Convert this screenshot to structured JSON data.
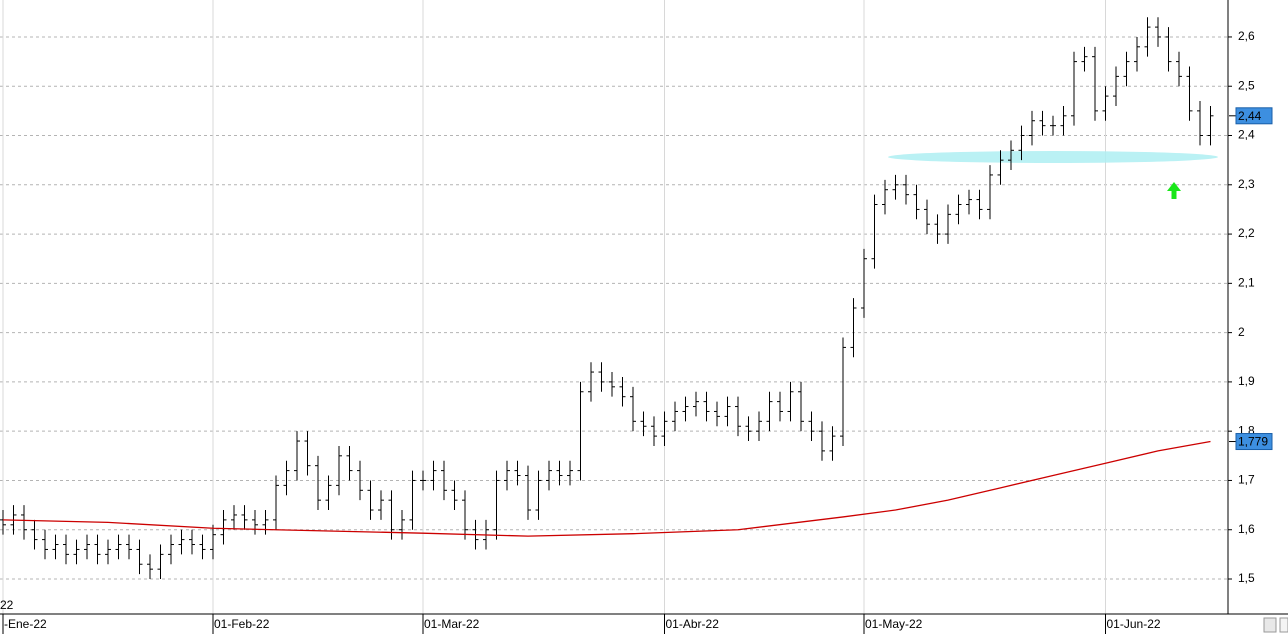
{
  "chart_data": {
    "type": "ohlc",
    "categories": [
      "-Ene-22",
      null,
      null,
      null,
      null,
      null,
      null,
      null,
      null,
      null,
      null,
      null,
      null,
      null,
      null,
      null,
      null,
      null,
      null,
      null,
      "01-Feb-22",
      null,
      null,
      null,
      null,
      null,
      null,
      null,
      null,
      null,
      null,
      null,
      null,
      null,
      null,
      null,
      null,
      null,
      null,
      null,
      "01-Mar-22",
      null,
      null,
      null,
      null,
      null,
      null,
      null,
      null,
      null,
      null,
      null,
      null,
      null,
      null,
      null,
      null,
      null,
      null,
      null,
      null,
      null,
      null,
      "01-Abr-22",
      null,
      null,
      null,
      null,
      null,
      null,
      null,
      null,
      null,
      null,
      null,
      null,
      null,
      null,
      null,
      null,
      null,
      null,
      "01-May-22",
      null,
      null,
      null,
      null,
      null,
      null,
      null,
      null,
      null,
      null,
      null,
      null,
      null,
      null,
      null,
      null,
      null,
      null,
      null,
      null,
      null,
      null,
      "01-Jun-22",
      null,
      null,
      null,
      null,
      null,
      null,
      null,
      null,
      null,
      null
    ],
    "open": [
      1.62,
      1.61,
      1.63,
      1.6,
      1.58,
      1.56,
      1.57,
      1.55,
      1.56,
      1.57,
      1.55,
      1.56,
      1.57,
      1.56,
      1.53,
      1.52,
      1.55,
      1.57,
      1.58,
      1.57,
      1.56,
      1.59,
      1.62,
      1.63,
      1.62,
      1.61,
      1.62,
      1.69,
      1.72,
      1.78,
      1.73,
      1.66,
      1.69,
      1.75,
      1.72,
      1.68,
      1.64,
      1.66,
      1.6,
      1.62,
      1.7,
      1.7,
      1.72,
      1.68,
      1.66,
      1.6,
      1.58,
      1.6,
      1.7,
      1.72,
      1.71,
      1.64,
      1.7,
      1.72,
      1.71,
      1.72,
      1.88,
      1.92,
      1.9,
      1.89,
      1.87,
      1.82,
      1.81,
      1.79,
      1.82,
      1.84,
      1.85,
      1.86,
      1.84,
      1.83,
      1.85,
      1.81,
      1.8,
      1.82,
      1.86,
      1.84,
      1.88,
      1.82,
      1.8,
      1.76,
      1.79,
      1.97,
      2.05,
      2.15,
      2.26,
      2.29,
      2.3,
      2.28,
      2.25,
      2.22,
      2.2,
      2.24,
      2.26,
      2.27,
      2.25,
      2.32,
      2.35,
      2.37,
      2.4,
      2.43,
      2.42,
      2.42,
      2.44,
      2.55,
      2.56,
      2.45,
      2.48,
      2.52,
      2.55,
      2.58,
      2.62,
      2.6,
      2.55,
      2.52,
      2.45,
      2.4
    ],
    "high": [
      1.64,
      1.65,
      1.65,
      1.62,
      1.6,
      1.59,
      1.59,
      1.58,
      1.59,
      1.59,
      1.58,
      1.59,
      1.59,
      1.58,
      1.55,
      1.57,
      1.59,
      1.6,
      1.6,
      1.59,
      1.61,
      1.64,
      1.65,
      1.65,
      1.64,
      1.64,
      1.71,
      1.74,
      1.8,
      1.8,
      1.75,
      1.71,
      1.77,
      1.77,
      1.74,
      1.7,
      1.68,
      1.68,
      1.64,
      1.72,
      1.72,
      1.74,
      1.74,
      1.7,
      1.68,
      1.62,
      1.62,
      1.72,
      1.74,
      1.74,
      1.73,
      1.72,
      1.74,
      1.74,
      1.74,
      1.9,
      1.94,
      1.94,
      1.92,
      1.91,
      1.89,
      1.84,
      1.83,
      1.84,
      1.86,
      1.87,
      1.88,
      1.88,
      1.86,
      1.87,
      1.87,
      1.83,
      1.84,
      1.88,
      1.88,
      1.9,
      1.9,
      1.84,
      1.82,
      1.81,
      1.99,
      2.07,
      2.17,
      2.28,
      2.31,
      2.32,
      2.32,
      2.3,
      2.27,
      2.24,
      2.26,
      2.28,
      2.29,
      2.29,
      2.34,
      2.37,
      2.39,
      2.42,
      2.45,
      2.45,
      2.44,
      2.46,
      2.57,
      2.58,
      2.58,
      2.5,
      2.54,
      2.57,
      2.6,
      2.64,
      2.64,
      2.62,
      2.57,
      2.54,
      2.47,
      2.46
    ],
    "low": [
      1.59,
      1.59,
      1.58,
      1.56,
      1.54,
      1.54,
      1.53,
      1.53,
      1.54,
      1.53,
      1.53,
      1.54,
      1.54,
      1.51,
      1.5,
      1.5,
      1.53,
      1.55,
      1.55,
      1.54,
      1.54,
      1.57,
      1.6,
      1.6,
      1.59,
      1.59,
      1.6,
      1.67,
      1.7,
      1.71,
      1.64,
      1.64,
      1.67,
      1.7,
      1.66,
      1.62,
      1.62,
      1.58,
      1.58,
      1.6,
      1.68,
      1.68,
      1.66,
      1.64,
      1.58,
      1.56,
      1.56,
      1.58,
      1.68,
      1.69,
      1.62,
      1.62,
      1.68,
      1.69,
      1.69,
      1.7,
      1.86,
      1.88,
      1.87,
      1.85,
      1.8,
      1.79,
      1.77,
      1.77,
      1.8,
      1.82,
      1.83,
      1.82,
      1.81,
      1.81,
      1.79,
      1.78,
      1.78,
      1.8,
      1.82,
      1.82,
      1.8,
      1.78,
      1.74,
      1.74,
      1.77,
      1.95,
      2.03,
      2.13,
      2.24,
      2.27,
      2.26,
      2.23,
      2.2,
      2.18,
      2.18,
      2.22,
      2.24,
      2.23,
      2.23,
      2.3,
      2.33,
      2.35,
      2.38,
      2.4,
      2.4,
      2.4,
      2.42,
      2.53,
      2.43,
      2.43,
      2.46,
      2.5,
      2.53,
      2.56,
      2.58,
      2.53,
      2.5,
      2.43,
      2.38,
      2.38
    ],
    "close": [
      1.61,
      1.63,
      1.6,
      1.58,
      1.56,
      1.57,
      1.55,
      1.56,
      1.57,
      1.55,
      1.56,
      1.57,
      1.56,
      1.53,
      1.52,
      1.55,
      1.57,
      1.58,
      1.57,
      1.56,
      1.59,
      1.62,
      1.63,
      1.62,
      1.61,
      1.62,
      1.69,
      1.72,
      1.78,
      1.73,
      1.66,
      1.69,
      1.75,
      1.72,
      1.68,
      1.64,
      1.66,
      1.6,
      1.62,
      1.7,
      1.7,
      1.72,
      1.68,
      1.66,
      1.6,
      1.58,
      1.6,
      1.7,
      1.72,
      1.71,
      1.64,
      1.7,
      1.72,
      1.71,
      1.72,
      1.88,
      1.92,
      1.9,
      1.89,
      1.87,
      1.82,
      1.81,
      1.79,
      1.82,
      1.84,
      1.85,
      1.86,
      1.84,
      1.83,
      1.85,
      1.81,
      1.8,
      1.82,
      1.86,
      1.84,
      1.88,
      1.82,
      1.8,
      1.76,
      1.79,
      1.97,
      2.05,
      2.15,
      2.26,
      2.29,
      2.3,
      2.28,
      2.25,
      2.22,
      2.2,
      2.24,
      2.26,
      2.27,
      2.25,
      2.32,
      2.35,
      2.37,
      2.4,
      2.43,
      2.42,
      2.42,
      2.44,
      2.55,
      2.56,
      2.45,
      2.48,
      2.52,
      2.55,
      2.58,
      2.62,
      2.6,
      2.55,
      2.52,
      2.45,
      2.4,
      2.44
    ],
    "color": "#000000",
    "close_label": "2,44",
    "moving_average": {
      "x": [
        0,
        10,
        20,
        30,
        40,
        50,
        60,
        70,
        80,
        85,
        90,
        95,
        100,
        105,
        110,
        115
      ],
      "values": [
        1.62,
        1.615,
        1.603,
        1.598,
        1.593,
        1.587,
        1.592,
        1.6,
        1.626,
        1.64,
        1.66,
        1.685,
        1.71,
        1.735,
        1.76,
        1.779
      ],
      "color": "#cc0000",
      "value_label": "1,779"
    },
    "label_color": "#3d8fe0",
    "annotation": "22",
    "ylim": [
      1.429,
      2.675
    ],
    "yticks": [
      {
        "value": 1.5,
        "label": "1,5"
      },
      {
        "value": 1.6,
        "label": "1,6"
      },
      {
        "value": 1.7,
        "label": "1,7"
      },
      {
        "value": 1.8,
        "label": "1,8"
      },
      {
        "value": 1.9,
        "label": "1,9"
      },
      2,
      {
        "value": 2.1,
        "label": "2,1"
      },
      {
        "value": 2.2,
        "label": "2,2"
      },
      {
        "value": 2.3,
        "label": "2,3"
      },
      {
        "value": 2.4,
        "label": "2,4"
      },
      {
        "value": 2.5,
        "label": "2,5"
      },
      {
        "value": 2.6,
        "label": "2,6"
      }
    ],
    "grid": true
  }
}
